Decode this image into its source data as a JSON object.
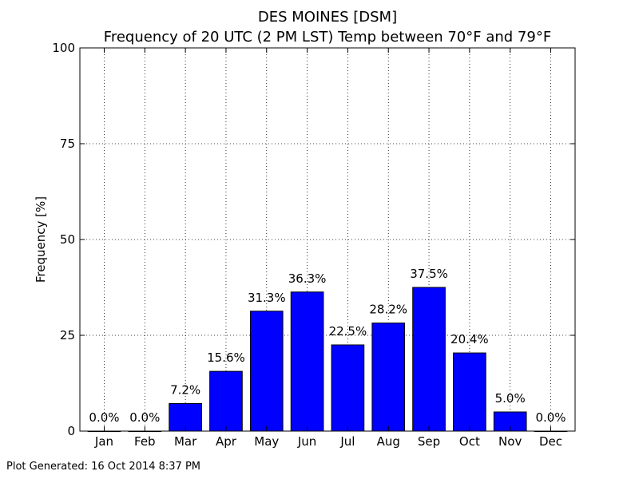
{
  "chart_data": {
    "type": "bar",
    "title": "DES MOINES [DSM]",
    "subtitle": "Frequency of 20 UTC (2 PM LST) Temp between 70°F and 79°F",
    "xlabel": "",
    "ylabel": "Frequency [%]",
    "ylim": [
      0,
      100
    ],
    "yticks": [
      "0",
      "25",
      "50",
      "75",
      "100"
    ],
    "categories": [
      "Jan",
      "Feb",
      "Mar",
      "Apr",
      "May",
      "Jun",
      "Jul",
      "Aug",
      "Sep",
      "Oct",
      "Nov",
      "Dec"
    ],
    "values": [
      0.0,
      0.0,
      7.2,
      15.6,
      31.3,
      36.3,
      22.5,
      28.2,
      37.5,
      20.4,
      5.0,
      0.0
    ],
    "data_labels": [
      "0.0%",
      "0.0%",
      "7.2%",
      "15.6%",
      "31.3%",
      "36.3%",
      "22.5%",
      "28.2%",
      "37.5%",
      "20.4%",
      "5.0%",
      "0.0%"
    ],
    "bar_color": "#0000ff",
    "grid": true
  },
  "footer": {
    "text": "Plot Generated: 16 Oct 2014 8:37 PM"
  }
}
